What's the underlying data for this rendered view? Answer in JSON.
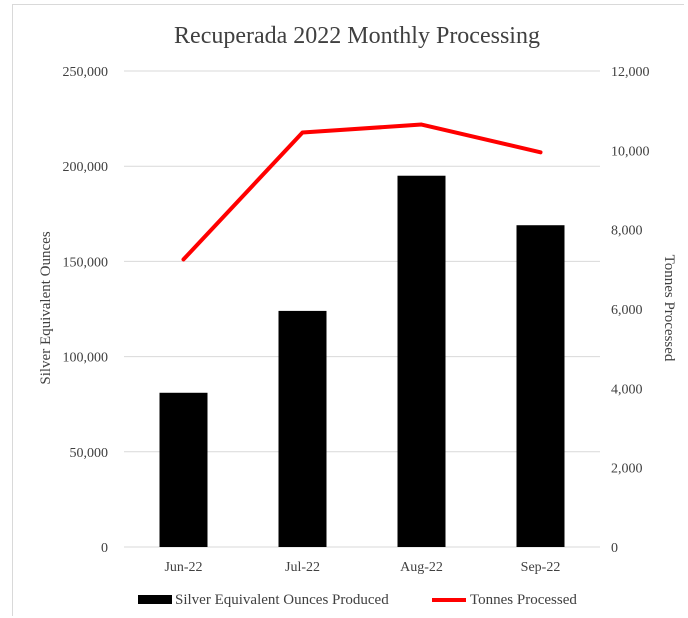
{
  "chart_data": {
    "type": "bar",
    "title": "Recuperada 2022 Monthly Processing",
    "categories": [
      "Jun-22",
      "Jul-22",
      "Aug-22",
      "Sep-22"
    ],
    "series": [
      {
        "name": "Silver Equivalent Ounces Produced",
        "type": "bar",
        "axis": "left",
        "color": "#000000",
        "values": [
          81000,
          124000,
          195000,
          169000
        ]
      },
      {
        "name": "Tonnes Processed",
        "type": "line",
        "axis": "right",
        "color": "#ff0000",
        "values": [
          7250,
          10450,
          10650,
          9950
        ]
      }
    ],
    "ylabel": "Silver Equivalent Ounces",
    "y2label": "Tonnes Processed",
    "ylim": [
      0,
      250000
    ],
    "y2lim": [
      0,
      12000
    ],
    "yticks": [
      "0",
      "50,000",
      "100,000",
      "150,000",
      "200,000",
      "250,000"
    ],
    "y2ticks": [
      "0",
      "2,000",
      "4,000",
      "6,000",
      "8,000",
      "10,000",
      "12,000"
    ],
    "grid": true,
    "legend_position": "bottom"
  }
}
